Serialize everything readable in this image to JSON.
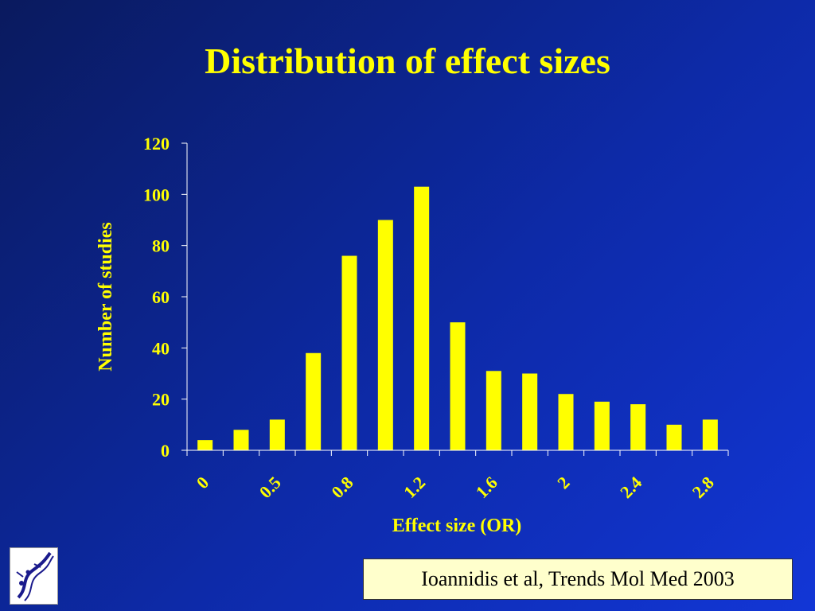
{
  "slide": {
    "title": "Distribution of effect sizes",
    "citation": "Ioannidis et al, Trends Mol Med 2003",
    "logo_icon": "dna-helix-logo-icon"
  },
  "colors": {
    "background": "#0d2aa8",
    "bars": "#ffff00",
    "text": "#ffff00",
    "citation_bg": "#ffffcc"
  },
  "chart_data": {
    "type": "bar",
    "title": "Distribution of effect sizes",
    "xlabel": "Effect size (OR)",
    "ylabel": "Number of studies",
    "ylim": [
      0,
      120
    ],
    "yticks": [
      0,
      20,
      40,
      60,
      80,
      100,
      120
    ],
    "xtick_labels": [
      "0",
      "0.5",
      "0.8",
      "1.2",
      "1.6",
      "2",
      "2.4",
      "2.8"
    ],
    "values": [
      4,
      8,
      12,
      38,
      76,
      90,
      103,
      50,
      31,
      30,
      22,
      19,
      18,
      10,
      12
    ],
    "grid": false,
    "legend": "none"
  }
}
